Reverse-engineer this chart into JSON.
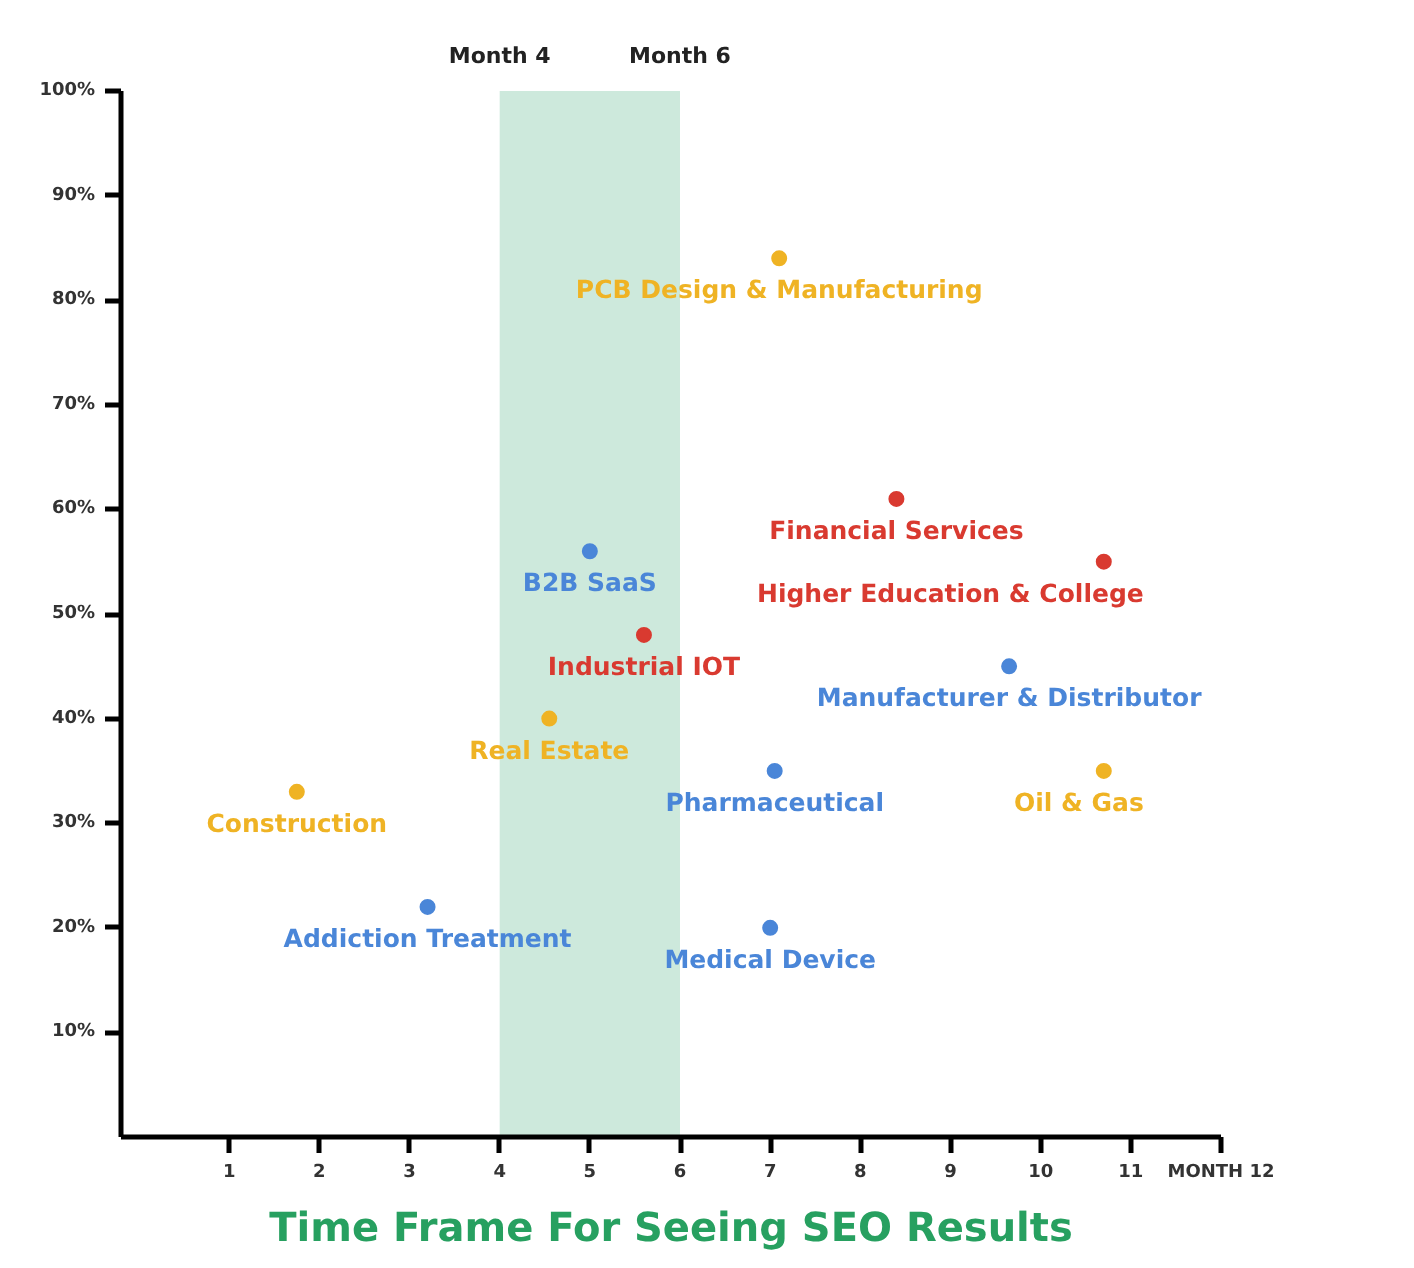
{
  "chart_data": {
    "type": "scatter",
    "title": "Time Frame For Seeing SEO Results",
    "xlim": [
      -0.2,
      12
    ],
    "ylim": [
      0,
      100
    ],
    "xticks": [
      1,
      2,
      3,
      4,
      5,
      6,
      7,
      8,
      9,
      10,
      11,
      {
        "value": 12,
        "label": "MONTH 12"
      }
    ],
    "yticks": [
      {
        "value": 10,
        "label": "10%"
      },
      {
        "value": 20,
        "label": "20%"
      },
      {
        "value": 30,
        "label": "30%"
      },
      {
        "value": 40,
        "label": "40%"
      },
      {
        "value": 50,
        "label": "50%"
      },
      {
        "value": 60,
        "label": "60%"
      },
      {
        "value": 70,
        "label": "70%"
      },
      {
        "value": 80,
        "label": "80%"
      },
      {
        "value": 90,
        "label": "90%"
      },
      {
        "value": 100,
        "label": "100%"
      }
    ],
    "grid": false,
    "marker": "circle",
    "bands": [
      {
        "axis": "x",
        "from": 4,
        "to": 6,
        "color": "#cde9dc"
      }
    ],
    "annotations": [
      "Month 4",
      "Month 6"
    ],
    "series": [
      {
        "name": "PCB Design & Manufacturing",
        "color": "#efb324",
        "x": [
          7.1
        ],
        "values": [
          84
        ]
      },
      {
        "name": "Financial Services",
        "color": "#d93a30",
        "x": [
          8.4
        ],
        "values": [
          61
        ]
      },
      {
        "name": "Higher Education & College",
        "color": "#d93a30",
        "x": [
          10.7
        ],
        "values": [
          55
        ]
      },
      {
        "name": "B2B SaaS",
        "color": "#4a86d8",
        "x": [
          5.0
        ],
        "values": [
          56
        ]
      },
      {
        "name": "Industrial IOT",
        "color": "#d93a30",
        "x": [
          5.6
        ],
        "values": [
          48
        ]
      },
      {
        "name": "Manufacturer & Distributor",
        "color": "#4a86d8",
        "x": [
          9.65
        ],
        "values": [
          45
        ]
      },
      {
        "name": "Real Estate",
        "color": "#efb324",
        "x": [
          4.55
        ],
        "values": [
          40
        ]
      },
      {
        "name": "Construction",
        "color": "#efb324",
        "x": [
          1.75
        ],
        "values": [
          33
        ]
      },
      {
        "name": "Pharmaceutical",
        "color": "#4a86d8",
        "x": [
          7.05
        ],
        "values": [
          35
        ]
      },
      {
        "name": "Oil & Gas",
        "color": "#efb324",
        "x": [
          10.7
        ],
        "values": [
          35
        ]
      },
      {
        "name": "Addiction Treatment",
        "color": "#4a86d8",
        "x": [
          3.2
        ],
        "values": [
          22
        ]
      },
      {
        "name": "Medical Device",
        "color": "#4a86d8",
        "x": [
          7.0
        ],
        "values": [
          20
        ]
      }
    ]
  }
}
